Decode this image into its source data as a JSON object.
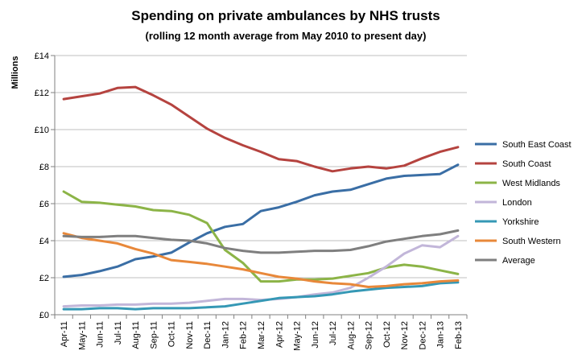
{
  "chart_data": {
    "type": "line",
    "title": "Spending on private ambulances by NHS trusts",
    "subtitle": "(rolling 12 month average from May 2010 to present day)",
    "ylabel": "Millions",
    "xlabel": "",
    "ylim": [
      0,
      14
    ],
    "ytick_step": 2,
    "ytick_prefix": "£",
    "grid": true,
    "legend_position": "right",
    "categories": [
      "Apr-11",
      "May-11",
      "Jun-11",
      "Jul-11",
      "Aug-11",
      "Sep-11",
      "Oct-11",
      "Nov-11",
      "Dec-11",
      "Jan-12",
      "Feb-12",
      "Mar-12",
      "Apr-12",
      "May-12",
      "Jun-12",
      "Jul-12",
      "Aug-12",
      "Sep-12",
      "Oct-12",
      "Nov-12",
      "Dec-12",
      "Jan-13",
      "Feb-13"
    ],
    "series": [
      {
        "name": "South East Coast",
        "color": "#3a6ea5",
        "values": [
          2.05,
          2.15,
          2.35,
          2.6,
          3.0,
          3.15,
          3.35,
          3.9,
          4.4,
          4.75,
          4.9,
          5.6,
          5.8,
          6.1,
          6.45,
          6.65,
          6.75,
          7.05,
          7.35,
          7.5,
          7.55,
          7.6,
          8.1
        ]
      },
      {
        "name": "South Coast",
        "color": "#b5433f",
        "values": [
          11.65,
          11.8,
          11.95,
          12.25,
          12.3,
          11.85,
          11.35,
          10.7,
          10.05,
          9.55,
          9.15,
          8.8,
          8.4,
          8.3,
          8.0,
          7.75,
          7.9,
          8.0,
          7.9,
          8.05,
          8.45,
          8.8,
          9.05
        ]
      },
      {
        "name": "West Midlands",
        "color": "#8cb447",
        "values": [
          6.65,
          6.1,
          6.05,
          5.95,
          5.85,
          5.65,
          5.6,
          5.4,
          4.95,
          3.5,
          2.8,
          1.8,
          1.8,
          1.9,
          1.9,
          1.95,
          2.1,
          2.25,
          2.55,
          2.7,
          2.6,
          2.4,
          2.2
        ]
      },
      {
        "name": "London",
        "color": "#c2b6d9",
        "values": [
          0.45,
          0.5,
          0.5,
          0.55,
          0.55,
          0.6,
          0.6,
          0.65,
          0.75,
          0.85,
          0.85,
          0.8,
          0.85,
          0.95,
          1.1,
          1.2,
          1.45,
          2.0,
          2.6,
          3.3,
          3.75,
          3.65,
          4.25
        ]
      },
      {
        "name": "Yorkshire",
        "color": "#3598b5",
        "values": [
          0.3,
          0.3,
          0.35,
          0.35,
          0.3,
          0.35,
          0.35,
          0.35,
          0.4,
          0.45,
          0.6,
          0.75,
          0.9,
          0.95,
          1.0,
          1.1,
          1.25,
          1.35,
          1.45,
          1.5,
          1.55,
          1.7,
          1.75
        ]
      },
      {
        "name": "South Western",
        "color": "#e8883a",
        "values": [
          4.4,
          4.15,
          4.0,
          3.85,
          3.55,
          3.3,
          2.95,
          2.85,
          2.75,
          2.6,
          2.45,
          2.25,
          2.05,
          1.95,
          1.8,
          1.7,
          1.65,
          1.5,
          1.55,
          1.65,
          1.7,
          1.8,
          1.85
        ]
      },
      {
        "name": "Average",
        "color": "#7f7f7f",
        "values": [
          4.25,
          4.2,
          4.2,
          4.25,
          4.25,
          4.15,
          4.05,
          4.0,
          3.85,
          3.6,
          3.45,
          3.35,
          3.35,
          3.4,
          3.45,
          3.45,
          3.5,
          3.7,
          3.95,
          4.1,
          4.25,
          4.35,
          4.55
        ]
      }
    ]
  }
}
